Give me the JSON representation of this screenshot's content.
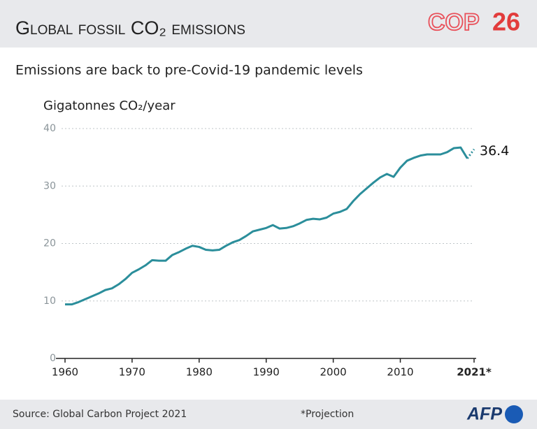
{
  "chart_data": {
    "type": "line",
    "title": "Global fossil CO₂ emissions",
    "subtitle": "Emissions are back to pre-Covid-19 pandemic levels",
    "y_label": "Gigatonnes CO₂/year",
    "source": "Source: Global Carbon Project 2021",
    "note": "*Projection",
    "cop_logo": [
      "COP",
      "26"
    ],
    "afp_logo": "AFP",
    "x": [
      1960,
      1961,
      1962,
      1963,
      1964,
      1965,
      1966,
      1967,
      1968,
      1969,
      1970,
      1971,
      1972,
      1973,
      1974,
      1975,
      1976,
      1977,
      1978,
      1979,
      1980,
      1981,
      1982,
      1983,
      1984,
      1985,
      1986,
      1987,
      1988,
      1989,
      1990,
      1991,
      1992,
      1993,
      1994,
      1995,
      1996,
      1997,
      1998,
      1999,
      2000,
      2001,
      2002,
      2003,
      2004,
      2005,
      2006,
      2007,
      2008,
      2009,
      2010,
      2011,
      2012,
      2013,
      2014,
      2015,
      2016,
      2017,
      2018,
      2019,
      2020,
      2021
    ],
    "series": [
      {
        "color": "#2b8e9b",
        "values": [
          9.4,
          9.4,
          9.8,
          10.3,
          10.8,
          11.3,
          11.9,
          12.2,
          12.9,
          13.8,
          14.9,
          15.5,
          16.2,
          17.1,
          17.0,
          17.0,
          18.0,
          18.5,
          19.1,
          19.6,
          19.4,
          18.9,
          18.8,
          18.9,
          19.6,
          20.2,
          20.6,
          21.3,
          22.1,
          22.4,
          22.7,
          23.2,
          22.6,
          22.7,
          23.0,
          23.5,
          24.1,
          24.3,
          24.2,
          24.5,
          25.2,
          25.5,
          26.0,
          27.4,
          28.6,
          29.6,
          30.6,
          31.5,
          32.1,
          31.6,
          33.2,
          34.4,
          34.9,
          35.3,
          35.5,
          35.5,
          35.5,
          35.9,
          36.6,
          36.7,
          34.8,
          36.4
        ]
      }
    ],
    "projected": [
      2021
    ],
    "xlim": [
      1960,
      2021
    ],
    "xticks": [
      1960,
      1970,
      1980,
      1990,
      2000,
      2010,
      {
        "value": 2021,
        "label": "2021*"
      }
    ],
    "ylim": [
      0,
      40
    ],
    "yticks": [
      0,
      10,
      20,
      30,
      40
    ],
    "grid": true
  }
}
